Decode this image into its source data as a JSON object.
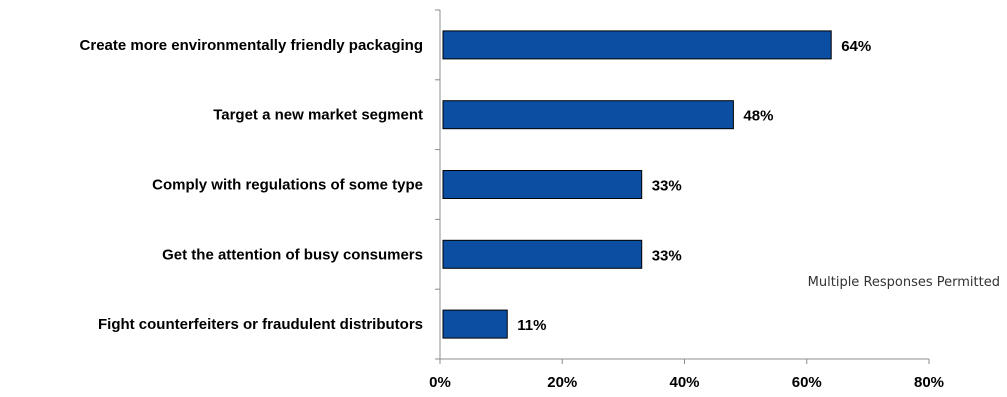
{
  "chart_data": {
    "type": "bar",
    "orientation": "horizontal",
    "categories": [
      "Create more environmentally friendly packaging",
      "Target a new market segment",
      "Comply with regulations of some type",
      "Get the attention of busy consumers",
      "Fight counterfeiters or fraudulent distributors"
    ],
    "values": [
      64,
      48,
      33,
      33,
      11
    ],
    "value_labels": [
      "64%",
      "48%",
      "33%",
      "33%",
      "11%"
    ],
    "x_ticks": [
      "0%",
      "20%",
      "40%",
      "60%",
      "80%"
    ],
    "xlim": [
      0,
      80
    ],
    "grid": false,
    "legend": "none",
    "bar_color": "#0B4EA2",
    "bar_border_color": "#000000",
    "annotation": "Multiple Responses Permitted"
  }
}
